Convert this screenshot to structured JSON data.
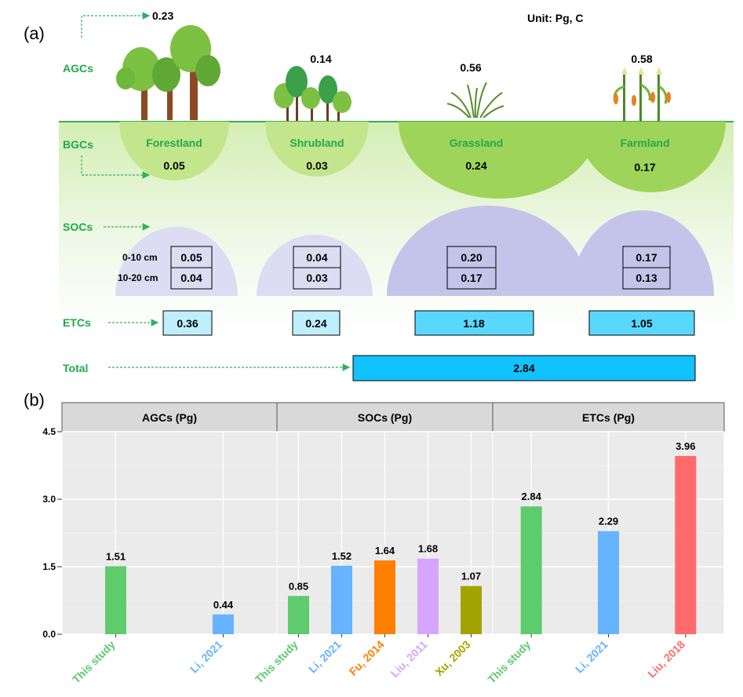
{
  "colors": {
    "green_text": "#1faa4a",
    "arrow": "#2fb35a",
    "ground_line": "#3cae4c",
    "bgc_light": "#c3e58c",
    "bgc_dark": "#9fd45a",
    "soc_light": "#dcdcf2",
    "soc_dark": "#c4c4ea",
    "etc_light": "#bfeeff",
    "etc_dark": "#5ad7ff",
    "total": "#12c2ff",
    "plot_bg": "#ebebeb",
    "strip_bg": "#d9d9d9",
    "this_study": "#5ecb6c",
    "li": "#66b3ff",
    "fu": "#ff7f00",
    "liu2011": "#d4a6ff",
    "xu": "#a3a300",
    "liu2018": "#ff6b6b"
  },
  "panel_a": {
    "label": "(a)",
    "unit": "Unit: Pg, C",
    "row_labels": {
      "agc": "AGCs",
      "bgc": "BGCs",
      "soc": "SOCs",
      "etc": "ETCs",
      "total": "Total"
    },
    "depths": [
      "0-10 cm",
      "10-20 cm"
    ],
    "ecosystems": [
      {
        "name": "Forestland",
        "agc": "0.23",
        "bgc": "0.05",
        "soc": [
          "0.05",
          "0.04"
        ],
        "etc": "0.36",
        "icon": "tree-icon"
      },
      {
        "name": "Shrubland",
        "agc": "0.14",
        "bgc": "0.03",
        "soc": [
          "0.04",
          "0.03"
        ],
        "etc": "0.24",
        "icon": "shrub-icon"
      },
      {
        "name": "Grassland",
        "agc": "0.56",
        "bgc": "0.24",
        "soc": [
          "0.20",
          "0.17"
        ],
        "etc": "1.18",
        "icon": "grass-icon"
      },
      {
        "name": "Farmland",
        "agc": "0.58",
        "bgc": "0.17",
        "soc": [
          "0.17",
          "0.13"
        ],
        "etc": "1.05",
        "icon": "corn-icon"
      }
    ],
    "total": "2.84"
  },
  "chart_data": {
    "label": "(b)",
    "type": "bar",
    "facets": [
      "AGCs (Pg)",
      "SOCs (Pg)",
      "ETCs (Pg)"
    ],
    "ylim": [
      0,
      4.5
    ],
    "yticks": [
      "0.0",
      "1.5",
      "3.0",
      "4.5"
    ],
    "grid": true,
    "bars": [
      {
        "facet": 0,
        "label": "This study",
        "value": 1.51,
        "color": "#5ecb6c"
      },
      {
        "facet": 0,
        "label": "Li, 2021",
        "value": 0.44,
        "color": "#66b3ff"
      },
      {
        "facet": 1,
        "label": "This study",
        "value": 0.85,
        "color": "#5ecb6c"
      },
      {
        "facet": 1,
        "label": "Li, 2021",
        "value": 1.52,
        "color": "#66b3ff"
      },
      {
        "facet": 1,
        "label": "Fu, 2014",
        "value": 1.64,
        "color": "#ff7f00"
      },
      {
        "facet": 1,
        "label": "Liu, 2011",
        "value": 1.68,
        "color": "#d4a6ff"
      },
      {
        "facet": 1,
        "label": "Xu, 2003",
        "value": 1.07,
        "color": "#a3a300"
      },
      {
        "facet": 2,
        "label": "This study",
        "value": 2.84,
        "color": "#5ecb6c"
      },
      {
        "facet": 2,
        "label": "Li, 2021",
        "value": 2.29,
        "color": "#66b3ff"
      },
      {
        "facet": 2,
        "label": "Liu, 2018",
        "value": 3.96,
        "color": "#ff6b6b"
      }
    ]
  }
}
